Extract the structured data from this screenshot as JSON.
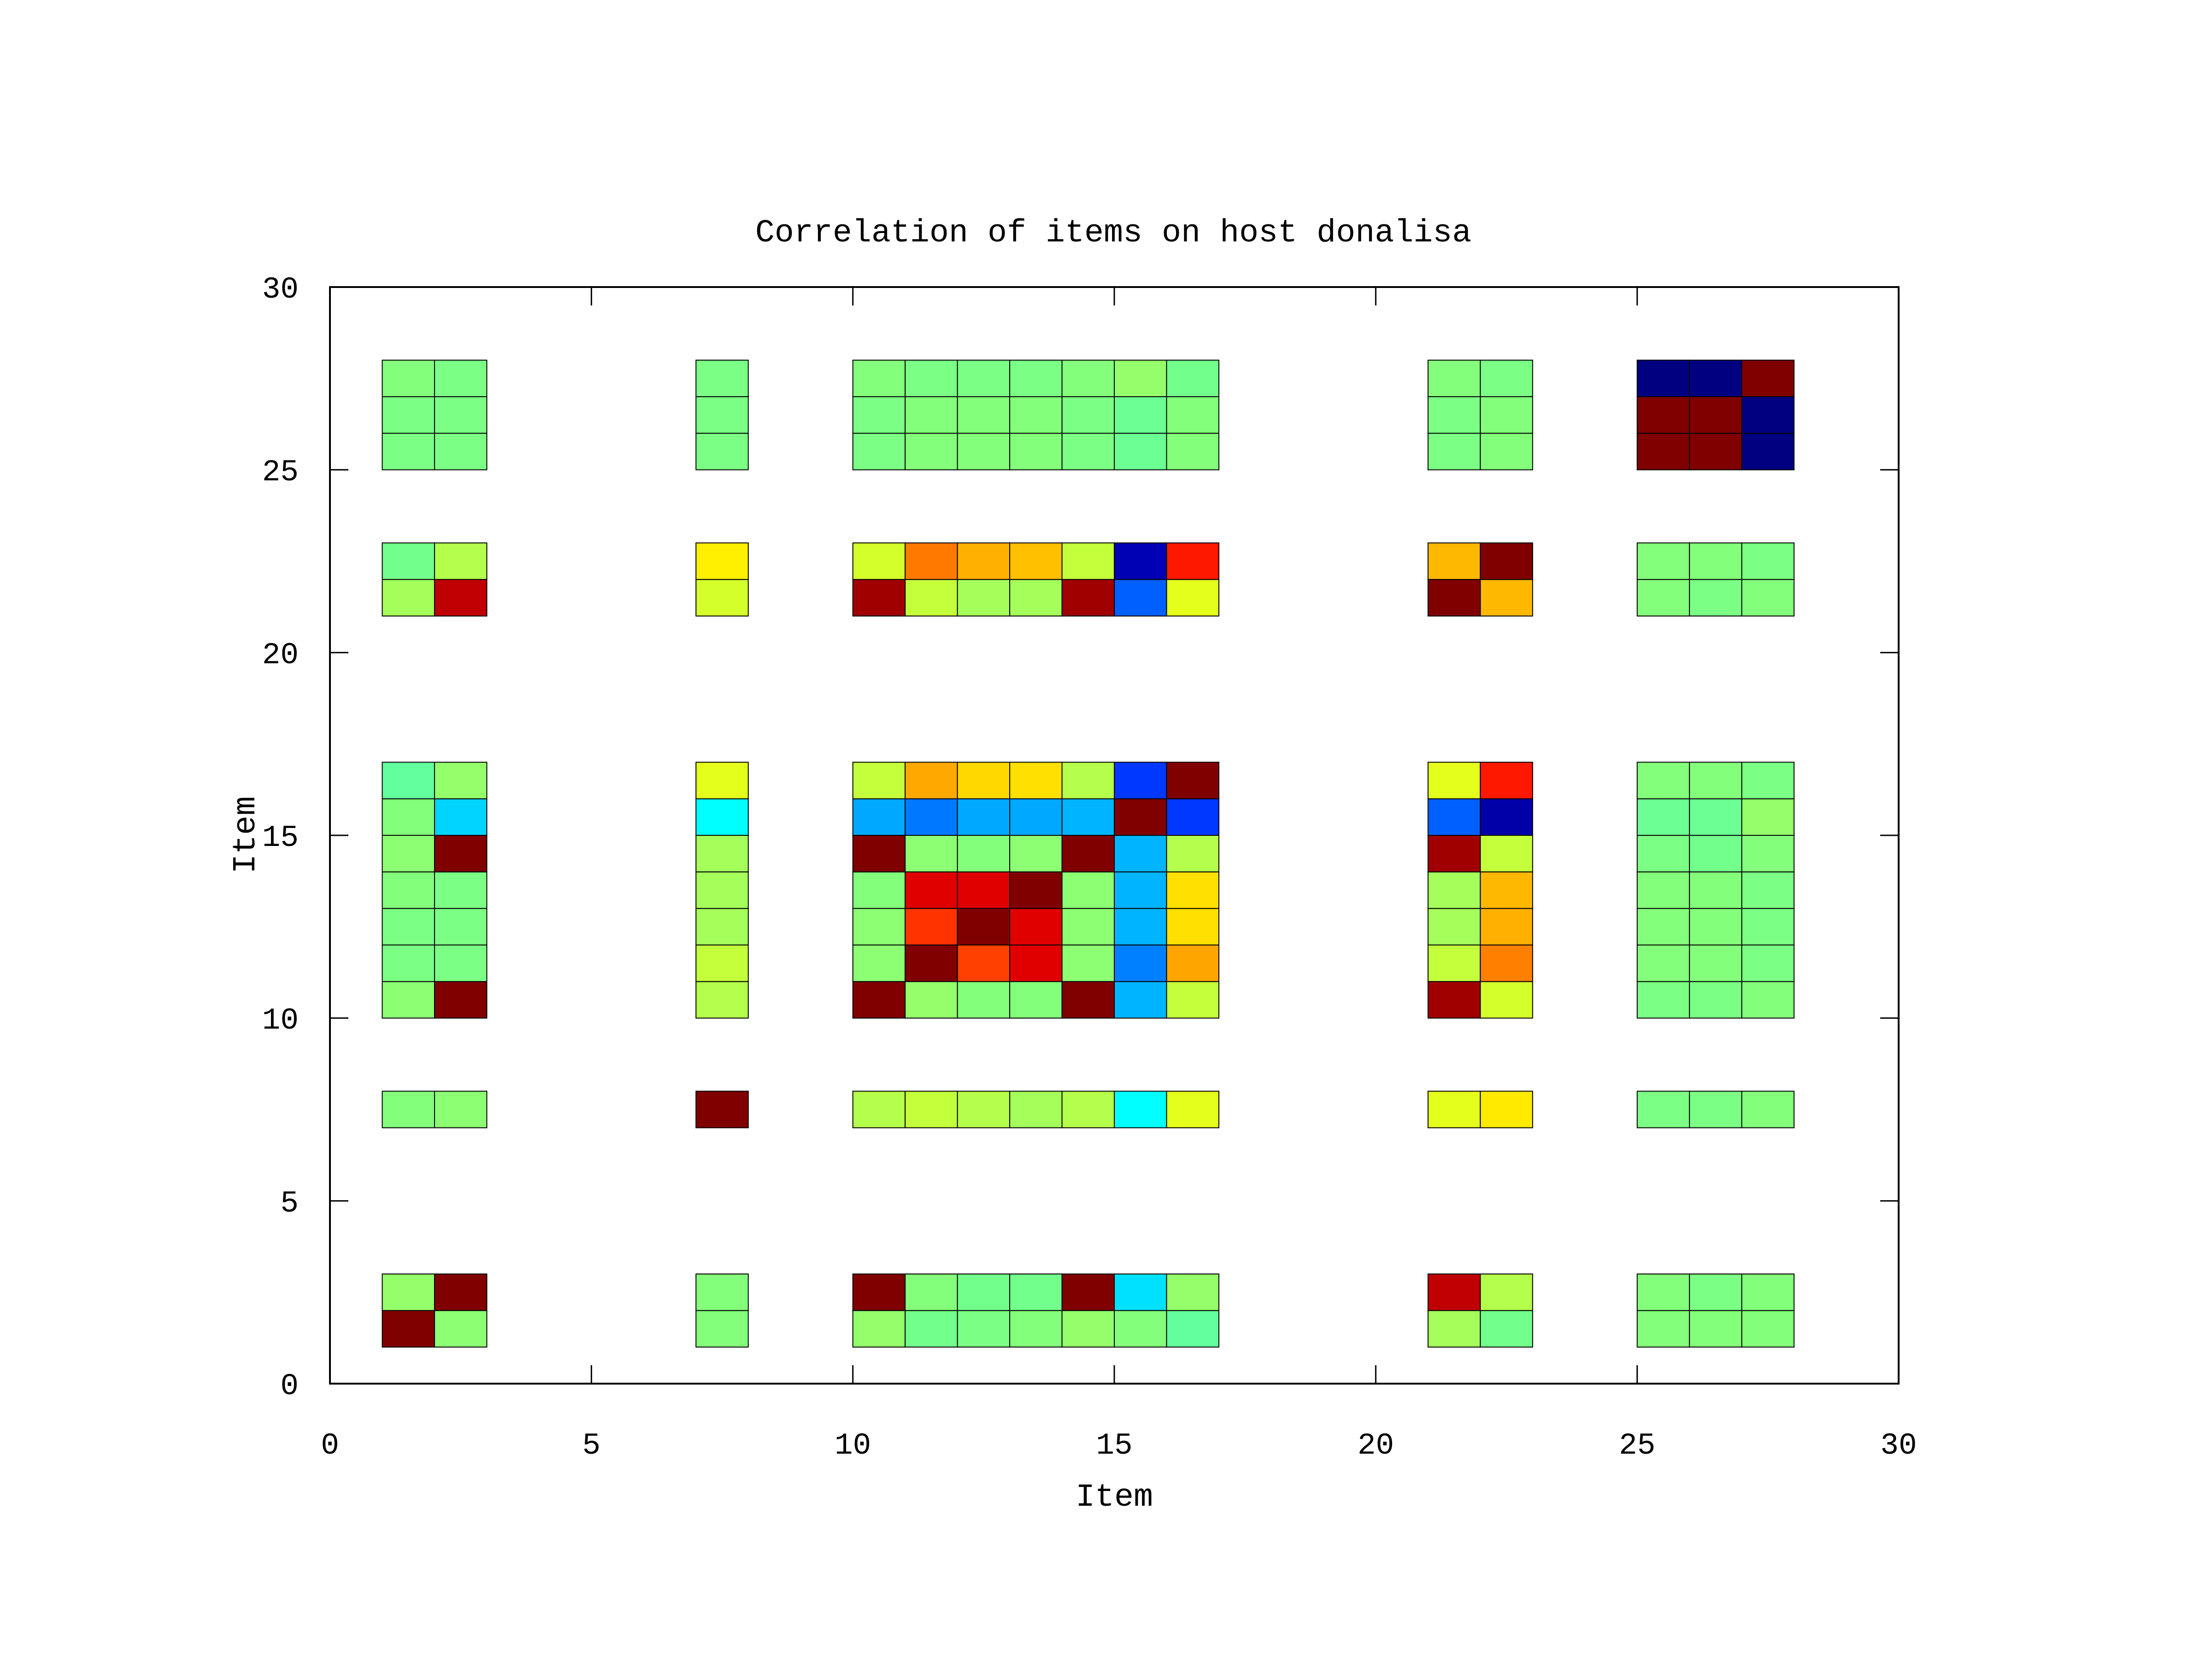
{
  "chart_data": {
    "type": "heatmap",
    "title": "Correlation of items on host donalisa",
    "xlabel": "Item",
    "ylabel": "Item",
    "xlim": [
      0,
      30
    ],
    "ylim": [
      0,
      30
    ],
    "xticks": [
      "0",
      "5",
      "10",
      "15",
      "20",
      "25",
      "30"
    ],
    "yticks": [
      "0",
      "5",
      "10",
      "15",
      "20",
      "25",
      "30"
    ],
    "grid": false,
    "legend": "none",
    "cell_size": 1,
    "colormap": "jet (blue = -1, green = 0, dark red = +1)",
    "cells": [
      {
        "x": 1,
        "y": 1,
        "color": "#800000"
      },
      {
        "x": 2,
        "y": 1,
        "color": "#8cff73"
      },
      {
        "x": 7,
        "y": 1,
        "color": "#84ff7b"
      },
      {
        "x": 10,
        "y": 1,
        "color": "#94ff6b"
      },
      {
        "x": 11,
        "y": 1,
        "color": "#73ff8c"
      },
      {
        "x": 12,
        "y": 1,
        "color": "#7bff84"
      },
      {
        "x": 13,
        "y": 1,
        "color": "#84ff7b"
      },
      {
        "x": 14,
        "y": 1,
        "color": "#94ff6b"
      },
      {
        "x": 15,
        "y": 1,
        "color": "#84ff7b"
      },
      {
        "x": 16,
        "y": 1,
        "color": "#63ff9c"
      },
      {
        "x": 21,
        "y": 1,
        "color": "#a4ff5b"
      },
      {
        "x": 22,
        "y": 1,
        "color": "#73ff8c"
      },
      {
        "x": 25,
        "y": 1,
        "color": "#84ff7b"
      },
      {
        "x": 26,
        "y": 1,
        "color": "#84ff7b"
      },
      {
        "x": 27,
        "y": 1,
        "color": "#84ff7b"
      },
      {
        "x": 1,
        "y": 2,
        "color": "#94ff6b"
      },
      {
        "x": 2,
        "y": 2,
        "color": "#800000"
      },
      {
        "x": 7,
        "y": 2,
        "color": "#84ff7b"
      },
      {
        "x": 10,
        "y": 2,
        "color": "#800000"
      },
      {
        "x": 11,
        "y": 2,
        "color": "#84ff7b"
      },
      {
        "x": 12,
        "y": 2,
        "color": "#73ff8c"
      },
      {
        "x": 13,
        "y": 2,
        "color": "#73ff8c"
      },
      {
        "x": 14,
        "y": 2,
        "color": "#800000"
      },
      {
        "x": 15,
        "y": 2,
        "color": "#00e0ff"
      },
      {
        "x": 16,
        "y": 2,
        "color": "#94ff6b"
      },
      {
        "x": 21,
        "y": 2,
        "color": "#c00000"
      },
      {
        "x": 22,
        "y": 2,
        "color": "#b4ff4b"
      },
      {
        "x": 25,
        "y": 2,
        "color": "#84ff7b"
      },
      {
        "x": 26,
        "y": 2,
        "color": "#7bff84"
      },
      {
        "x": 27,
        "y": 2,
        "color": "#84ff7b"
      },
      {
        "x": 1,
        "y": 7,
        "color": "#84ff7b"
      },
      {
        "x": 2,
        "y": 7,
        "color": "#8cff73"
      },
      {
        "x": 7,
        "y": 7,
        "color": "#800000"
      },
      {
        "x": 10,
        "y": 7,
        "color": "#b4ff4b"
      },
      {
        "x": 11,
        "y": 7,
        "color": "#c4ff3b"
      },
      {
        "x": 12,
        "y": 7,
        "color": "#b4ff4b"
      },
      {
        "x": 13,
        "y": 7,
        "color": "#a4ff5b"
      },
      {
        "x": 14,
        "y": 7,
        "color": "#b4ff4b"
      },
      {
        "x": 15,
        "y": 7,
        "color": "#00ffff"
      },
      {
        "x": 16,
        "y": 7,
        "color": "#e4ff1b"
      },
      {
        "x": 21,
        "y": 7,
        "color": "#e4ff1b"
      },
      {
        "x": 22,
        "y": 7,
        "color": "#ffea00"
      },
      {
        "x": 25,
        "y": 7,
        "color": "#7bff84"
      },
      {
        "x": 26,
        "y": 7,
        "color": "#7bff84"
      },
      {
        "x": 27,
        "y": 7,
        "color": "#84ff7b"
      },
      {
        "x": 1,
        "y": 10,
        "color": "#8cff73"
      },
      {
        "x": 2,
        "y": 10,
        "color": "#800000"
      },
      {
        "x": 7,
        "y": 10,
        "color": "#b4ff4b"
      },
      {
        "x": 10,
        "y": 10,
        "color": "#800000"
      },
      {
        "x": 11,
        "y": 10,
        "color": "#94ff6b"
      },
      {
        "x": 12,
        "y": 10,
        "color": "#84ff7b"
      },
      {
        "x": 13,
        "y": 10,
        "color": "#84ff7b"
      },
      {
        "x": 14,
        "y": 10,
        "color": "#800000"
      },
      {
        "x": 15,
        "y": 10,
        "color": "#00b4ff"
      },
      {
        "x": 16,
        "y": 10,
        "color": "#c4ff3b"
      },
      {
        "x": 21,
        "y": 10,
        "color": "#a00000"
      },
      {
        "x": 22,
        "y": 10,
        "color": "#d4ff2b"
      },
      {
        "x": 25,
        "y": 10,
        "color": "#7bff84"
      },
      {
        "x": 26,
        "y": 10,
        "color": "#7bff84"
      },
      {
        "x": 27,
        "y": 10,
        "color": "#84ff7b"
      },
      {
        "x": 1,
        "y": 11,
        "color": "#7bff84"
      },
      {
        "x": 2,
        "y": 11,
        "color": "#7bff84"
      },
      {
        "x": 7,
        "y": 11,
        "color": "#c4ff3b"
      },
      {
        "x": 10,
        "y": 11,
        "color": "#8cff73"
      },
      {
        "x": 11,
        "y": 11,
        "color": "#800000"
      },
      {
        "x": 12,
        "y": 11,
        "color": "#ff4000"
      },
      {
        "x": 13,
        "y": 11,
        "color": "#e00000"
      },
      {
        "x": 14,
        "y": 11,
        "color": "#8cff73"
      },
      {
        "x": 15,
        "y": 11,
        "color": "#0080ff"
      },
      {
        "x": 16,
        "y": 11,
        "color": "#ffa500"
      },
      {
        "x": 21,
        "y": 11,
        "color": "#c4ff3b"
      },
      {
        "x": 22,
        "y": 11,
        "color": "#ff8000"
      },
      {
        "x": 25,
        "y": 11,
        "color": "#84ff7b"
      },
      {
        "x": 26,
        "y": 11,
        "color": "#84ff7b"
      },
      {
        "x": 27,
        "y": 11,
        "color": "#7bff84"
      },
      {
        "x": 1,
        "y": 12,
        "color": "#7bff84"
      },
      {
        "x": 2,
        "y": 12,
        "color": "#7bff84"
      },
      {
        "x": 7,
        "y": 12,
        "color": "#a4ff5b"
      },
      {
        "x": 10,
        "y": 12,
        "color": "#8cff73"
      },
      {
        "x": 11,
        "y": 12,
        "color": "#ff3300"
      },
      {
        "x": 12,
        "y": 12,
        "color": "#800000"
      },
      {
        "x": 13,
        "y": 12,
        "color": "#e00000"
      },
      {
        "x": 14,
        "y": 12,
        "color": "#8cff73"
      },
      {
        "x": 15,
        "y": 12,
        "color": "#00b4ff"
      },
      {
        "x": 16,
        "y": 12,
        "color": "#ffe000"
      },
      {
        "x": 21,
        "y": 12,
        "color": "#a4ff5b"
      },
      {
        "x": 22,
        "y": 12,
        "color": "#ffb000"
      },
      {
        "x": 25,
        "y": 12,
        "color": "#84ff7b"
      },
      {
        "x": 26,
        "y": 12,
        "color": "#84ff7b"
      },
      {
        "x": 27,
        "y": 12,
        "color": "#7bff84"
      },
      {
        "x": 1,
        "y": 13,
        "color": "#84ff7b"
      },
      {
        "x": 2,
        "y": 13,
        "color": "#7bff84"
      },
      {
        "x": 7,
        "y": 13,
        "color": "#a4ff5b"
      },
      {
        "x": 10,
        "y": 13,
        "color": "#84ff7b"
      },
      {
        "x": 11,
        "y": 13,
        "color": "#e00000"
      },
      {
        "x": 12,
        "y": 13,
        "color": "#e00000"
      },
      {
        "x": 13,
        "y": 13,
        "color": "#800000"
      },
      {
        "x": 14,
        "y": 13,
        "color": "#8cff73"
      },
      {
        "x": 15,
        "y": 13,
        "color": "#00b4ff"
      },
      {
        "x": 16,
        "y": 13,
        "color": "#ffe000"
      },
      {
        "x": 21,
        "y": 13,
        "color": "#a4ff5b"
      },
      {
        "x": 22,
        "y": 13,
        "color": "#ffb800"
      },
      {
        "x": 25,
        "y": 13,
        "color": "#84ff7b"
      },
      {
        "x": 26,
        "y": 13,
        "color": "#84ff7b"
      },
      {
        "x": 27,
        "y": 13,
        "color": "#7bff84"
      },
      {
        "x": 1,
        "y": 14,
        "color": "#8cff73"
      },
      {
        "x": 2,
        "y": 14,
        "color": "#800000"
      },
      {
        "x": 7,
        "y": 14,
        "color": "#a4ff5b"
      },
      {
        "x": 10,
        "y": 14,
        "color": "#800000"
      },
      {
        "x": 11,
        "y": 14,
        "color": "#8cff73"
      },
      {
        "x": 12,
        "y": 14,
        "color": "#84ff7b"
      },
      {
        "x": 13,
        "y": 14,
        "color": "#8cff73"
      },
      {
        "x": 14,
        "y": 14,
        "color": "#800000"
      },
      {
        "x": 15,
        "y": 14,
        "color": "#00b4ff"
      },
      {
        "x": 16,
        "y": 14,
        "color": "#b4ff4b"
      },
      {
        "x": 21,
        "y": 14,
        "color": "#a00000"
      },
      {
        "x": 22,
        "y": 14,
        "color": "#c4ff3b"
      },
      {
        "x": 25,
        "y": 14,
        "color": "#7bff84"
      },
      {
        "x": 26,
        "y": 14,
        "color": "#73ff8c"
      },
      {
        "x": 27,
        "y": 14,
        "color": "#84ff7b"
      },
      {
        "x": 1,
        "y": 15,
        "color": "#84ff7b"
      },
      {
        "x": 2,
        "y": 15,
        "color": "#00d4ff"
      },
      {
        "x": 7,
        "y": 15,
        "color": "#00ffff"
      },
      {
        "x": 10,
        "y": 15,
        "color": "#00a8ff"
      },
      {
        "x": 11,
        "y": 15,
        "color": "#0078ff"
      },
      {
        "x": 12,
        "y": 15,
        "color": "#00a8ff"
      },
      {
        "x": 13,
        "y": 15,
        "color": "#00a8ff"
      },
      {
        "x": 14,
        "y": 15,
        "color": "#00b4ff"
      },
      {
        "x": 15,
        "y": 15,
        "color": "#800000"
      },
      {
        "x": 16,
        "y": 15,
        "color": "#0038ff"
      },
      {
        "x": 21,
        "y": 15,
        "color": "#0060ff"
      },
      {
        "x": 22,
        "y": 15,
        "color": "#0000a8"
      },
      {
        "x": 25,
        "y": 15,
        "color": "#6bff94"
      },
      {
        "x": 26,
        "y": 15,
        "color": "#6bff94"
      },
      {
        "x": 27,
        "y": 15,
        "color": "#94ff6b"
      },
      {
        "x": 1,
        "y": 16,
        "color": "#63ff9c"
      },
      {
        "x": 2,
        "y": 16,
        "color": "#94ff6b"
      },
      {
        "x": 7,
        "y": 16,
        "color": "#e4ff1b"
      },
      {
        "x": 10,
        "y": 16,
        "color": "#c4ff3b"
      },
      {
        "x": 11,
        "y": 16,
        "color": "#ffa800"
      },
      {
        "x": 12,
        "y": 16,
        "color": "#ffd800"
      },
      {
        "x": 13,
        "y": 16,
        "color": "#ffe000"
      },
      {
        "x": 14,
        "y": 16,
        "color": "#b4ff4b"
      },
      {
        "x": 15,
        "y": 16,
        "color": "#0038ff"
      },
      {
        "x": 16,
        "y": 16,
        "color": "#800000"
      },
      {
        "x": 21,
        "y": 16,
        "color": "#e4ff1b"
      },
      {
        "x": 22,
        "y": 16,
        "color": "#ff1800"
      },
      {
        "x": 25,
        "y": 16,
        "color": "#84ff7b"
      },
      {
        "x": 26,
        "y": 16,
        "color": "#84ff7b"
      },
      {
        "x": 27,
        "y": 16,
        "color": "#7bff84"
      },
      {
        "x": 1,
        "y": 21,
        "color": "#a4ff5b"
      },
      {
        "x": 2,
        "y": 21,
        "color": "#c00000"
      },
      {
        "x": 7,
        "y": 21,
        "color": "#d4ff2b"
      },
      {
        "x": 10,
        "y": 21,
        "color": "#a00000"
      },
      {
        "x": 11,
        "y": 21,
        "color": "#c4ff3b"
      },
      {
        "x": 12,
        "y": 21,
        "color": "#a4ff5b"
      },
      {
        "x": 13,
        "y": 21,
        "color": "#a4ff5b"
      },
      {
        "x": 14,
        "y": 21,
        "color": "#a00000"
      },
      {
        "x": 15,
        "y": 21,
        "color": "#0060ff"
      },
      {
        "x": 16,
        "y": 21,
        "color": "#e4ff1b"
      },
      {
        "x": 21,
        "y": 21,
        "color": "#800000"
      },
      {
        "x": 22,
        "y": 21,
        "color": "#ffb800"
      },
      {
        "x": 25,
        "y": 21,
        "color": "#84ff7b"
      },
      {
        "x": 26,
        "y": 21,
        "color": "#7bff84"
      },
      {
        "x": 27,
        "y": 21,
        "color": "#84ff7b"
      },
      {
        "x": 1,
        "y": 22,
        "color": "#73ff8c"
      },
      {
        "x": 2,
        "y": 22,
        "color": "#b4ff4b"
      },
      {
        "x": 7,
        "y": 22,
        "color": "#fff000"
      },
      {
        "x": 10,
        "y": 22,
        "color": "#d4ff2b"
      },
      {
        "x": 11,
        "y": 22,
        "color": "#ff7800"
      },
      {
        "x": 12,
        "y": 22,
        "color": "#ffb000"
      },
      {
        "x": 13,
        "y": 22,
        "color": "#ffc000"
      },
      {
        "x": 14,
        "y": 22,
        "color": "#c4ff3b"
      },
      {
        "x": 15,
        "y": 22,
        "color": "#0000b4"
      },
      {
        "x": 16,
        "y": 22,
        "color": "#ff1800"
      },
      {
        "x": 21,
        "y": 22,
        "color": "#ffb800"
      },
      {
        "x": 22,
        "y": 22,
        "color": "#800000"
      },
      {
        "x": 25,
        "y": 22,
        "color": "#84ff7b"
      },
      {
        "x": 26,
        "y": 22,
        "color": "#84ff7b"
      },
      {
        "x": 27,
        "y": 22,
        "color": "#7bff84"
      },
      {
        "x": 1,
        "y": 25,
        "color": "#7bff84"
      },
      {
        "x": 2,
        "y": 25,
        "color": "#7bff84"
      },
      {
        "x": 7,
        "y": 25,
        "color": "#7bff84"
      },
      {
        "x": 10,
        "y": 25,
        "color": "#7bff84"
      },
      {
        "x": 11,
        "y": 25,
        "color": "#84ff7b"
      },
      {
        "x": 12,
        "y": 25,
        "color": "#84ff7b"
      },
      {
        "x": 13,
        "y": 25,
        "color": "#84ff7b"
      },
      {
        "x": 14,
        "y": 25,
        "color": "#7bff84"
      },
      {
        "x": 15,
        "y": 25,
        "color": "#6bff94"
      },
      {
        "x": 16,
        "y": 25,
        "color": "#84ff7b"
      },
      {
        "x": 21,
        "y": 25,
        "color": "#7bff84"
      },
      {
        "x": 22,
        "y": 25,
        "color": "#84ff7b"
      },
      {
        "x": 25,
        "y": 25,
        "color": "#800000"
      },
      {
        "x": 26,
        "y": 25,
        "color": "#800000"
      },
      {
        "x": 27,
        "y": 25,
        "color": "#000080"
      },
      {
        "x": 1,
        "y": 26,
        "color": "#7bff84"
      },
      {
        "x": 2,
        "y": 26,
        "color": "#7bff84"
      },
      {
        "x": 7,
        "y": 26,
        "color": "#7bff84"
      },
      {
        "x": 10,
        "y": 26,
        "color": "#7bff84"
      },
      {
        "x": 11,
        "y": 26,
        "color": "#84ff7b"
      },
      {
        "x": 12,
        "y": 26,
        "color": "#84ff7b"
      },
      {
        "x": 13,
        "y": 26,
        "color": "#84ff7b"
      },
      {
        "x": 14,
        "y": 26,
        "color": "#7bff84"
      },
      {
        "x": 15,
        "y": 26,
        "color": "#6bff94"
      },
      {
        "x": 16,
        "y": 26,
        "color": "#84ff7b"
      },
      {
        "x": 21,
        "y": 26,
        "color": "#7bff84"
      },
      {
        "x": 22,
        "y": 26,
        "color": "#84ff7b"
      },
      {
        "x": 25,
        "y": 26,
        "color": "#800000"
      },
      {
        "x": 26,
        "y": 26,
        "color": "#800000"
      },
      {
        "x": 27,
        "y": 26,
        "color": "#000080"
      },
      {
        "x": 1,
        "y": 27,
        "color": "#84ff7b"
      },
      {
        "x": 2,
        "y": 27,
        "color": "#7bff84"
      },
      {
        "x": 7,
        "y": 27,
        "color": "#7bff84"
      },
      {
        "x": 10,
        "y": 27,
        "color": "#84ff7b"
      },
      {
        "x": 11,
        "y": 27,
        "color": "#7bff84"
      },
      {
        "x": 12,
        "y": 27,
        "color": "#7bff84"
      },
      {
        "x": 13,
        "y": 27,
        "color": "#7bff84"
      },
      {
        "x": 14,
        "y": 27,
        "color": "#84ff7b"
      },
      {
        "x": 15,
        "y": 27,
        "color": "#94ff6b"
      },
      {
        "x": 16,
        "y": 27,
        "color": "#73ff8c"
      },
      {
        "x": 21,
        "y": 27,
        "color": "#84ff7b"
      },
      {
        "x": 22,
        "y": 27,
        "color": "#7bff84"
      },
      {
        "x": 25,
        "y": 27,
        "color": "#000080"
      },
      {
        "x": 26,
        "y": 27,
        "color": "#000080"
      },
      {
        "x": 27,
        "y": 27,
        "color": "#800000"
      }
    ]
  }
}
